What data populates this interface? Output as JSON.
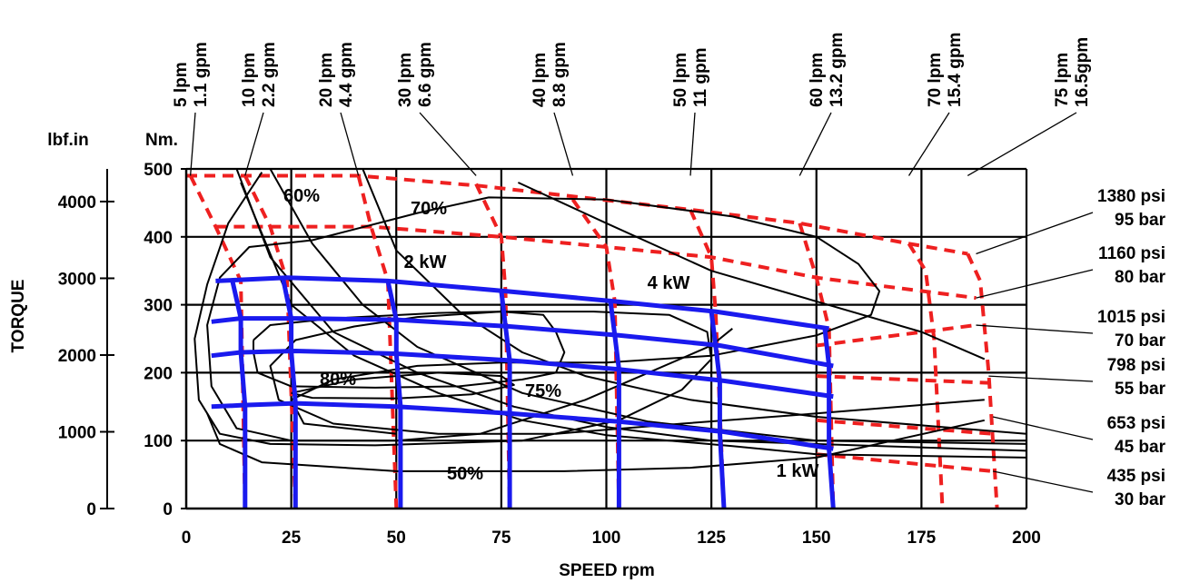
{
  "chart_data": {
    "type": "line",
    "xlabel": "SPEED rpm",
    "ylabel": "TORQUE",
    "x_ticks": [
      "0",
      "25",
      "50",
      "75",
      "100",
      "125",
      "150",
      "175",
      "200"
    ],
    "xlim": [
      0,
      200
    ],
    "y_nm": {
      "unit": "Nm.",
      "ylim": [
        0,
        500
      ],
      "ticks": [
        "0",
        "100",
        "200",
        "300",
        "400",
        "500"
      ]
    },
    "y_lbfin": {
      "unit": "lbf.in",
      "ticks": [
        "0",
        "1000",
        "2000",
        "3000",
        "4000"
      ]
    },
    "grid": true,
    "flow_labels": [
      {
        "lpm": "5 lpm",
        "gpm": "1.1 gpm",
        "x": 1
      },
      {
        "lpm": "10 lpm",
        "gpm": "2.2 gpm",
        "x": 14
      },
      {
        "lpm": "20 lpm",
        "gpm": "4.4 gpm",
        "x": 41
      },
      {
        "lpm": "30 lpm",
        "gpm": "6.6 gpm",
        "x": 69
      },
      {
        "lpm": "40 lpm",
        "gpm": "8.8 gpm",
        "x": 92
      },
      {
        "lpm": "50 lpm",
        "gpm": "11 gpm",
        "x": 120
      },
      {
        "lpm": "60 lpm",
        "gpm": "13.2 gpm",
        "x": 146
      },
      {
        "lpm": "70 lpm",
        "gpm": "15.4 gpm",
        "x": 172
      },
      {
        "lpm": "75 lpm",
        "gpm": "16.5gpm",
        "x": 186
      }
    ],
    "pressure_labels": [
      {
        "psi": "1380 psi",
        "bar": "95 bar",
        "x": 188,
        "y": 375
      },
      {
        "psi": "1160 psi",
        "bar": "80 bar",
        "x": 188,
        "y": 310
      },
      {
        "psi": "1015  psi",
        "bar": "70  bar",
        "x": 188,
        "y": 270
      },
      {
        "psi": "798 psi",
        "bar": "55 bar",
        "x": 191,
        "y": 195
      },
      {
        "psi": "653 psi",
        "bar": "45 bar",
        "x": 192,
        "y": 135
      },
      {
        "psi": "435 psi",
        "bar": "30 bar",
        "x": 192,
        "y": 55
      }
    ],
    "efficiency_labels": [
      "60%",
      "70%",
      "80%",
      "75%",
      "50%"
    ],
    "power_labels": [
      "2 kW",
      "4 kW",
      "1 kW"
    ],
    "series_red_dashed_pressure": [
      {
        "points": [
          [
            0,
            490
          ],
          [
            13,
            490
          ],
          [
            41,
            490
          ],
          [
            70,
            475
          ],
          [
            120,
            440
          ],
          [
            146,
            420
          ],
          [
            172,
            390
          ],
          [
            186,
            375
          ]
        ]
      },
      {
        "points": [
          [
            7,
            415
          ],
          [
            44,
            415
          ],
          [
            75,
            400
          ],
          [
            125,
            370
          ],
          [
            150,
            340
          ],
          [
            188,
            310
          ]
        ]
      },
      {
        "points": [
          [
            150,
            240
          ],
          [
            188,
            270
          ]
        ]
      },
      {
        "points": [
          [
            150,
            195
          ],
          [
            191,
            185
          ]
        ]
      },
      {
        "points": [
          [
            150,
            130
          ],
          [
            192,
            110
          ]
        ]
      },
      {
        "points": [
          [
            150,
            80
          ],
          [
            192,
            55
          ]
        ]
      }
    ],
    "series_red_dashed_flow": [
      {
        "points": [
          [
            1,
            490
          ],
          [
            7,
            415
          ],
          [
            13,
            335
          ],
          [
            14,
            0
          ]
        ]
      },
      {
        "points": [
          [
            14,
            490
          ],
          [
            20,
            415
          ],
          [
            24,
            335
          ],
          [
            26,
            0
          ]
        ]
      },
      {
        "points": [
          [
            41,
            490
          ],
          [
            44,
            415
          ],
          [
            48,
            335
          ],
          [
            50,
            0
          ]
        ]
      },
      {
        "points": [
          [
            69,
            478
          ],
          [
            75,
            400
          ],
          [
            76,
            320
          ],
          [
            77,
            0
          ]
        ]
      },
      {
        "points": [
          [
            92,
            455
          ],
          [
            100,
            385
          ],
          [
            102,
            305
          ],
          [
            103,
            0
          ]
        ]
      },
      {
        "points": [
          [
            120,
            440
          ],
          [
            125,
            370
          ],
          [
            126,
            290
          ],
          [
            128,
            0
          ]
        ]
      },
      {
        "points": [
          [
            146,
            420
          ],
          [
            150,
            340
          ],
          [
            153,
            265
          ],
          [
            154,
            0
          ]
        ]
      },
      {
        "points": [
          [
            172,
            390
          ],
          [
            176,
            350
          ],
          [
            178,
            250
          ],
          [
            180,
            0
          ]
        ]
      },
      {
        "points": [
          [
            186,
            375
          ],
          [
            189,
            335
          ],
          [
            191,
            200
          ],
          [
            193,
            0
          ]
        ]
      }
    ],
    "series_blue_pressure": [
      {
        "points": [
          [
            7,
            335
          ],
          [
            24,
            340
          ],
          [
            48,
            335
          ],
          [
            76,
            320
          ],
          [
            102,
            305
          ],
          [
            126,
            290
          ],
          [
            153,
            265
          ]
        ]
      },
      {
        "points": [
          [
            6,
            275
          ],
          [
            13,
            280
          ],
          [
            26,
            280
          ],
          [
            50,
            278
          ],
          [
            77,
            268
          ],
          [
            103,
            255
          ],
          [
            127,
            240
          ],
          [
            154,
            210
          ]
        ]
      },
      {
        "points": [
          [
            6,
            225
          ],
          [
            13,
            230
          ],
          [
            26,
            232
          ],
          [
            50,
            228
          ],
          [
            77,
            218
          ],
          [
            103,
            205
          ],
          [
            128,
            188
          ],
          [
            154,
            165
          ]
        ]
      },
      {
        "points": [
          [
            6,
            150
          ],
          [
            13,
            152
          ],
          [
            26,
            155
          ],
          [
            50,
            150
          ],
          [
            77,
            140
          ],
          [
            103,
            128
          ],
          [
            128,
            113
          ],
          [
            154,
            88
          ]
        ]
      }
    ],
    "series_blue_flow": [
      {
        "points": [
          [
            11,
            335
          ],
          [
            13,
            280
          ],
          [
            13,
            230
          ],
          [
            14,
            150
          ],
          [
            14,
            0
          ]
        ]
      },
      {
        "points": [
          [
            23,
            340
          ],
          [
            25,
            280
          ],
          [
            25,
            232
          ],
          [
            26,
            155
          ],
          [
            26,
            0
          ]
        ]
      },
      {
        "points": [
          [
            48,
            335
          ],
          [
            50,
            278
          ],
          [
            50,
            228
          ],
          [
            51,
            150
          ],
          [
            51,
            0
          ]
        ]
      },
      {
        "points": [
          [
            75,
            320
          ],
          [
            76,
            268
          ],
          [
            77,
            218
          ],
          [
            77,
            140
          ],
          [
            77,
            0
          ]
        ]
      },
      {
        "points": [
          [
            101,
            305
          ],
          [
            102,
            255
          ],
          [
            103,
            205
          ],
          [
            103,
            128
          ],
          [
            103,
            0
          ]
        ]
      },
      {
        "points": [
          [
            125,
            290
          ],
          [
            126,
            240
          ],
          [
            127,
            188
          ],
          [
            127,
            113
          ],
          [
            128,
            0
          ]
        ]
      },
      {
        "points": [
          [
            152,
            265
          ],
          [
            153,
            210
          ],
          [
            153,
            165
          ],
          [
            153,
            88
          ],
          [
            154,
            0
          ]
        ]
      }
    ],
    "series_black_contours": [
      {
        "name": "60%",
        "points": [
          [
            18,
            495
          ],
          [
            10,
            420
          ],
          [
            5,
            330
          ],
          [
            2,
            250
          ],
          [
            3,
            160
          ],
          [
            8,
            110
          ],
          [
            20,
            95
          ],
          [
            45,
            93
          ],
          [
            80,
            100
          ],
          [
            103,
            130
          ],
          [
            118,
            175
          ],
          [
            125,
            220
          ],
          [
            124,
            260
          ],
          [
            115,
            285
          ],
          [
            97,
            290
          ],
          [
            75,
            290
          ],
          [
            55,
            282
          ],
          [
            40,
            268
          ],
          [
            26,
            248
          ],
          [
            20,
            210
          ],
          [
            22,
            160
          ],
          [
            35,
            125
          ],
          [
            60,
            110
          ],
          [
            88,
            110
          ],
          [
            118,
            125
          ],
          [
            150,
            140
          ],
          [
            190,
            160
          ]
        ]
      },
      {
        "name": "70%",
        "points": [
          [
            30,
            395
          ],
          [
            15,
            385
          ],
          [
            8,
            340
          ],
          [
            5,
            270
          ],
          [
            6,
            180
          ],
          [
            12,
            118
          ],
          [
            25,
            100
          ],
          [
            50,
            100
          ],
          [
            70,
            110
          ],
          [
            95,
            160
          ],
          [
            110,
            200
          ],
          [
            125,
            240
          ],
          [
            130,
            265
          ]
        ]
      },
      {
        "name": "70% outer",
        "points": [
          [
            30,
            395
          ],
          [
            55,
            435
          ],
          [
            72,
            458
          ],
          [
            100,
            455
          ],
          [
            130,
            430
          ],
          [
            150,
            400
          ],
          [
            160,
            360
          ],
          [
            165,
            320
          ],
          [
            163,
            285
          ],
          [
            150,
            255
          ],
          [
            125,
            225
          ],
          [
            100,
            215
          ],
          [
            75,
            215
          ],
          [
            55,
            210
          ],
          [
            35,
            190
          ],
          [
            25,
            160
          ],
          [
            28,
            125
          ],
          [
            50,
            110
          ]
        ]
      },
      {
        "name": "80%",
        "points": [
          [
            25,
            170
          ],
          [
            40,
            190
          ],
          [
            60,
            200
          ],
          [
            75,
            195
          ],
          [
            78,
            182
          ],
          [
            68,
            168
          ],
          [
            50,
            162
          ],
          [
            30,
            163
          ],
          [
            25,
            170
          ]
        ]
      },
      {
        "name": "75%",
        "points": [
          [
            16,
            248
          ],
          [
            20,
            270
          ],
          [
            35,
            280
          ],
          [
            60,
            288
          ],
          [
            75,
            290
          ],
          [
            85,
            285
          ],
          [
            88,
            260
          ],
          [
            90,
            230
          ],
          [
            88,
            200
          ],
          [
            80,
            190
          ],
          [
            65,
            180
          ],
          [
            45,
            178
          ],
          [
            25,
            180
          ],
          [
            17,
            200
          ],
          [
            16,
            230
          ],
          [
            16,
            248
          ]
        ]
      },
      {
        "name": "50%",
        "points": [
          [
            5,
            140
          ],
          [
            8,
            95
          ],
          [
            18,
            68
          ],
          [
            50,
            55
          ],
          [
            90,
            55
          ],
          [
            120,
            60
          ],
          [
            150,
            75
          ],
          [
            190,
            130
          ]
        ]
      },
      {
        "name": "2 kW",
        "points": [
          [
            20,
            500
          ],
          [
            30,
            390
          ],
          [
            42,
            300
          ],
          [
            55,
            238
          ],
          [
            80,
            170
          ],
          [
            110,
            128
          ],
          [
            150,
            100
          ],
          [
            200,
            95
          ]
        ]
      },
      {
        "name": "4 kW",
        "points": [
          [
            79,
            480
          ],
          [
            100,
            420
          ],
          [
            125,
            350
          ],
          [
            150,
            305
          ],
          [
            175,
            260
          ],
          [
            190,
            220
          ]
        ]
      },
      {
        "name": "4 kW lower",
        "points": [
          [
            42,
            500
          ],
          [
            50,
            380
          ],
          [
            65,
            290
          ],
          [
            80,
            230
          ],
          [
            95,
            195
          ],
          [
            120,
            160
          ],
          [
            150,
            135
          ],
          [
            200,
            110
          ]
        ]
      },
      {
        "name": "1 kW",
        "points": [
          [
            13,
            480
          ],
          [
            25,
            300
          ],
          [
            40,
            225
          ],
          [
            60,
            170
          ],
          [
            80,
            130
          ],
          [
            100,
            108
          ],
          [
            130,
            92
          ],
          [
            150,
            80
          ],
          [
            200,
            75
          ]
        ]
      },
      {
        "name": "1 kW tail",
        "points": [
          [
            12,
            500
          ],
          [
            20,
            370
          ],
          [
            35,
            260
          ],
          [
            55,
            200
          ],
          [
            78,
            150
          ],
          [
            100,
            120
          ],
          [
            125,
            100
          ],
          [
            200,
            85
          ]
        ]
      }
    ]
  }
}
